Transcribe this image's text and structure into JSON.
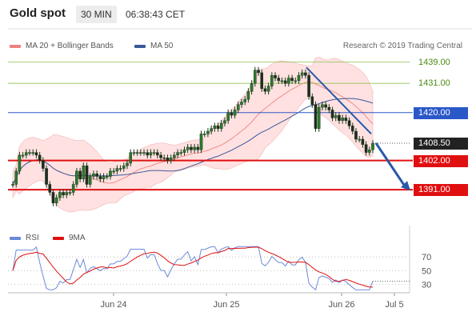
{
  "header": {
    "title": "Gold spot",
    "timeframe": "30 MIN",
    "time": "06:38:43 CET"
  },
  "legend": {
    "ma20": {
      "label": "MA 20 + Bollinger Bands",
      "color": "#f08080"
    },
    "ma50": {
      "label": "MA 50",
      "color": "#3a5a9a"
    }
  },
  "credit": "Research © 2019 Trading Central",
  "rsi_legend": {
    "rsi": {
      "label": "RSI",
      "color": "#6a8ad8"
    },
    "ma9": {
      "label": "9MA",
      "color": "#e01010"
    }
  },
  "colors": {
    "resistance": "#8fc24f",
    "support": "#e01010",
    "pivot": "#2a58c8",
    "current": "#222222",
    "arrow": "#2a58a8"
  },
  "chart_data": {
    "type": "candlestick",
    "x_ticks": [
      "Jun 24",
      "Jun 25",
      "Jun 26",
      "Jul 5"
    ],
    "y_range": [
      1380.5,
      1442.5
    ],
    "levels": [
      {
        "value": "1439.00",
        "kind": "resistance"
      },
      {
        "value": "1431.00",
        "kind": "resistance"
      },
      {
        "value": "1420.00",
        "kind": "pivot"
      },
      {
        "value": "1408.50",
        "kind": "current"
      },
      {
        "value": "1402.00",
        "kind": "support"
      },
      {
        "value": "1391.00",
        "kind": "support"
      }
    ],
    "close_series": [
      1393,
      1398,
      1404,
      1404,
      1405,
      1405,
      1405,
      1404,
      1402,
      1399,
      1393,
      1390,
      1386,
      1388,
      1390,
      1389,
      1390,
      1390,
      1393,
      1398,
      1395,
      1400,
      1393,
      1396,
      1397,
      1396,
      1395,
      1396,
      1396,
      1398,
      1398,
      1399,
      1399,
      1400,
      1401,
      1405,
      1405,
      1405,
      1405,
      1405,
      1404,
      1405,
      1405,
      1404,
      1403,
      1403,
      1402,
      1403,
      1404,
      1405,
      1405,
      1406,
      1407,
      1406,
      1407,
      1406,
      1412,
      1412,
      1413,
      1414,
      1415,
      1414,
      1416,
      1417,
      1420,
      1419,
      1421,
      1423,
      1424,
      1425,
      1428,
      1431,
      1436,
      1435,
      1429,
      1428,
      1430,
      1434,
      1433,
      1432,
      1432,
      1431,
      1433,
      1432,
      1432,
      1434,
      1435,
      1434,
      1426,
      1423,
      1414,
      1422,
      1423,
      1422,
      1421,
      1418,
      1419,
      1417,
      1418,
      1417,
      1415,
      1413,
      1410,
      1410,
      1408,
      1405,
      1406,
      1408.5
    ],
    "rsi": {
      "range": [
        20,
        90
      ],
      "ticks": [
        30,
        50,
        70
      ]
    }
  }
}
